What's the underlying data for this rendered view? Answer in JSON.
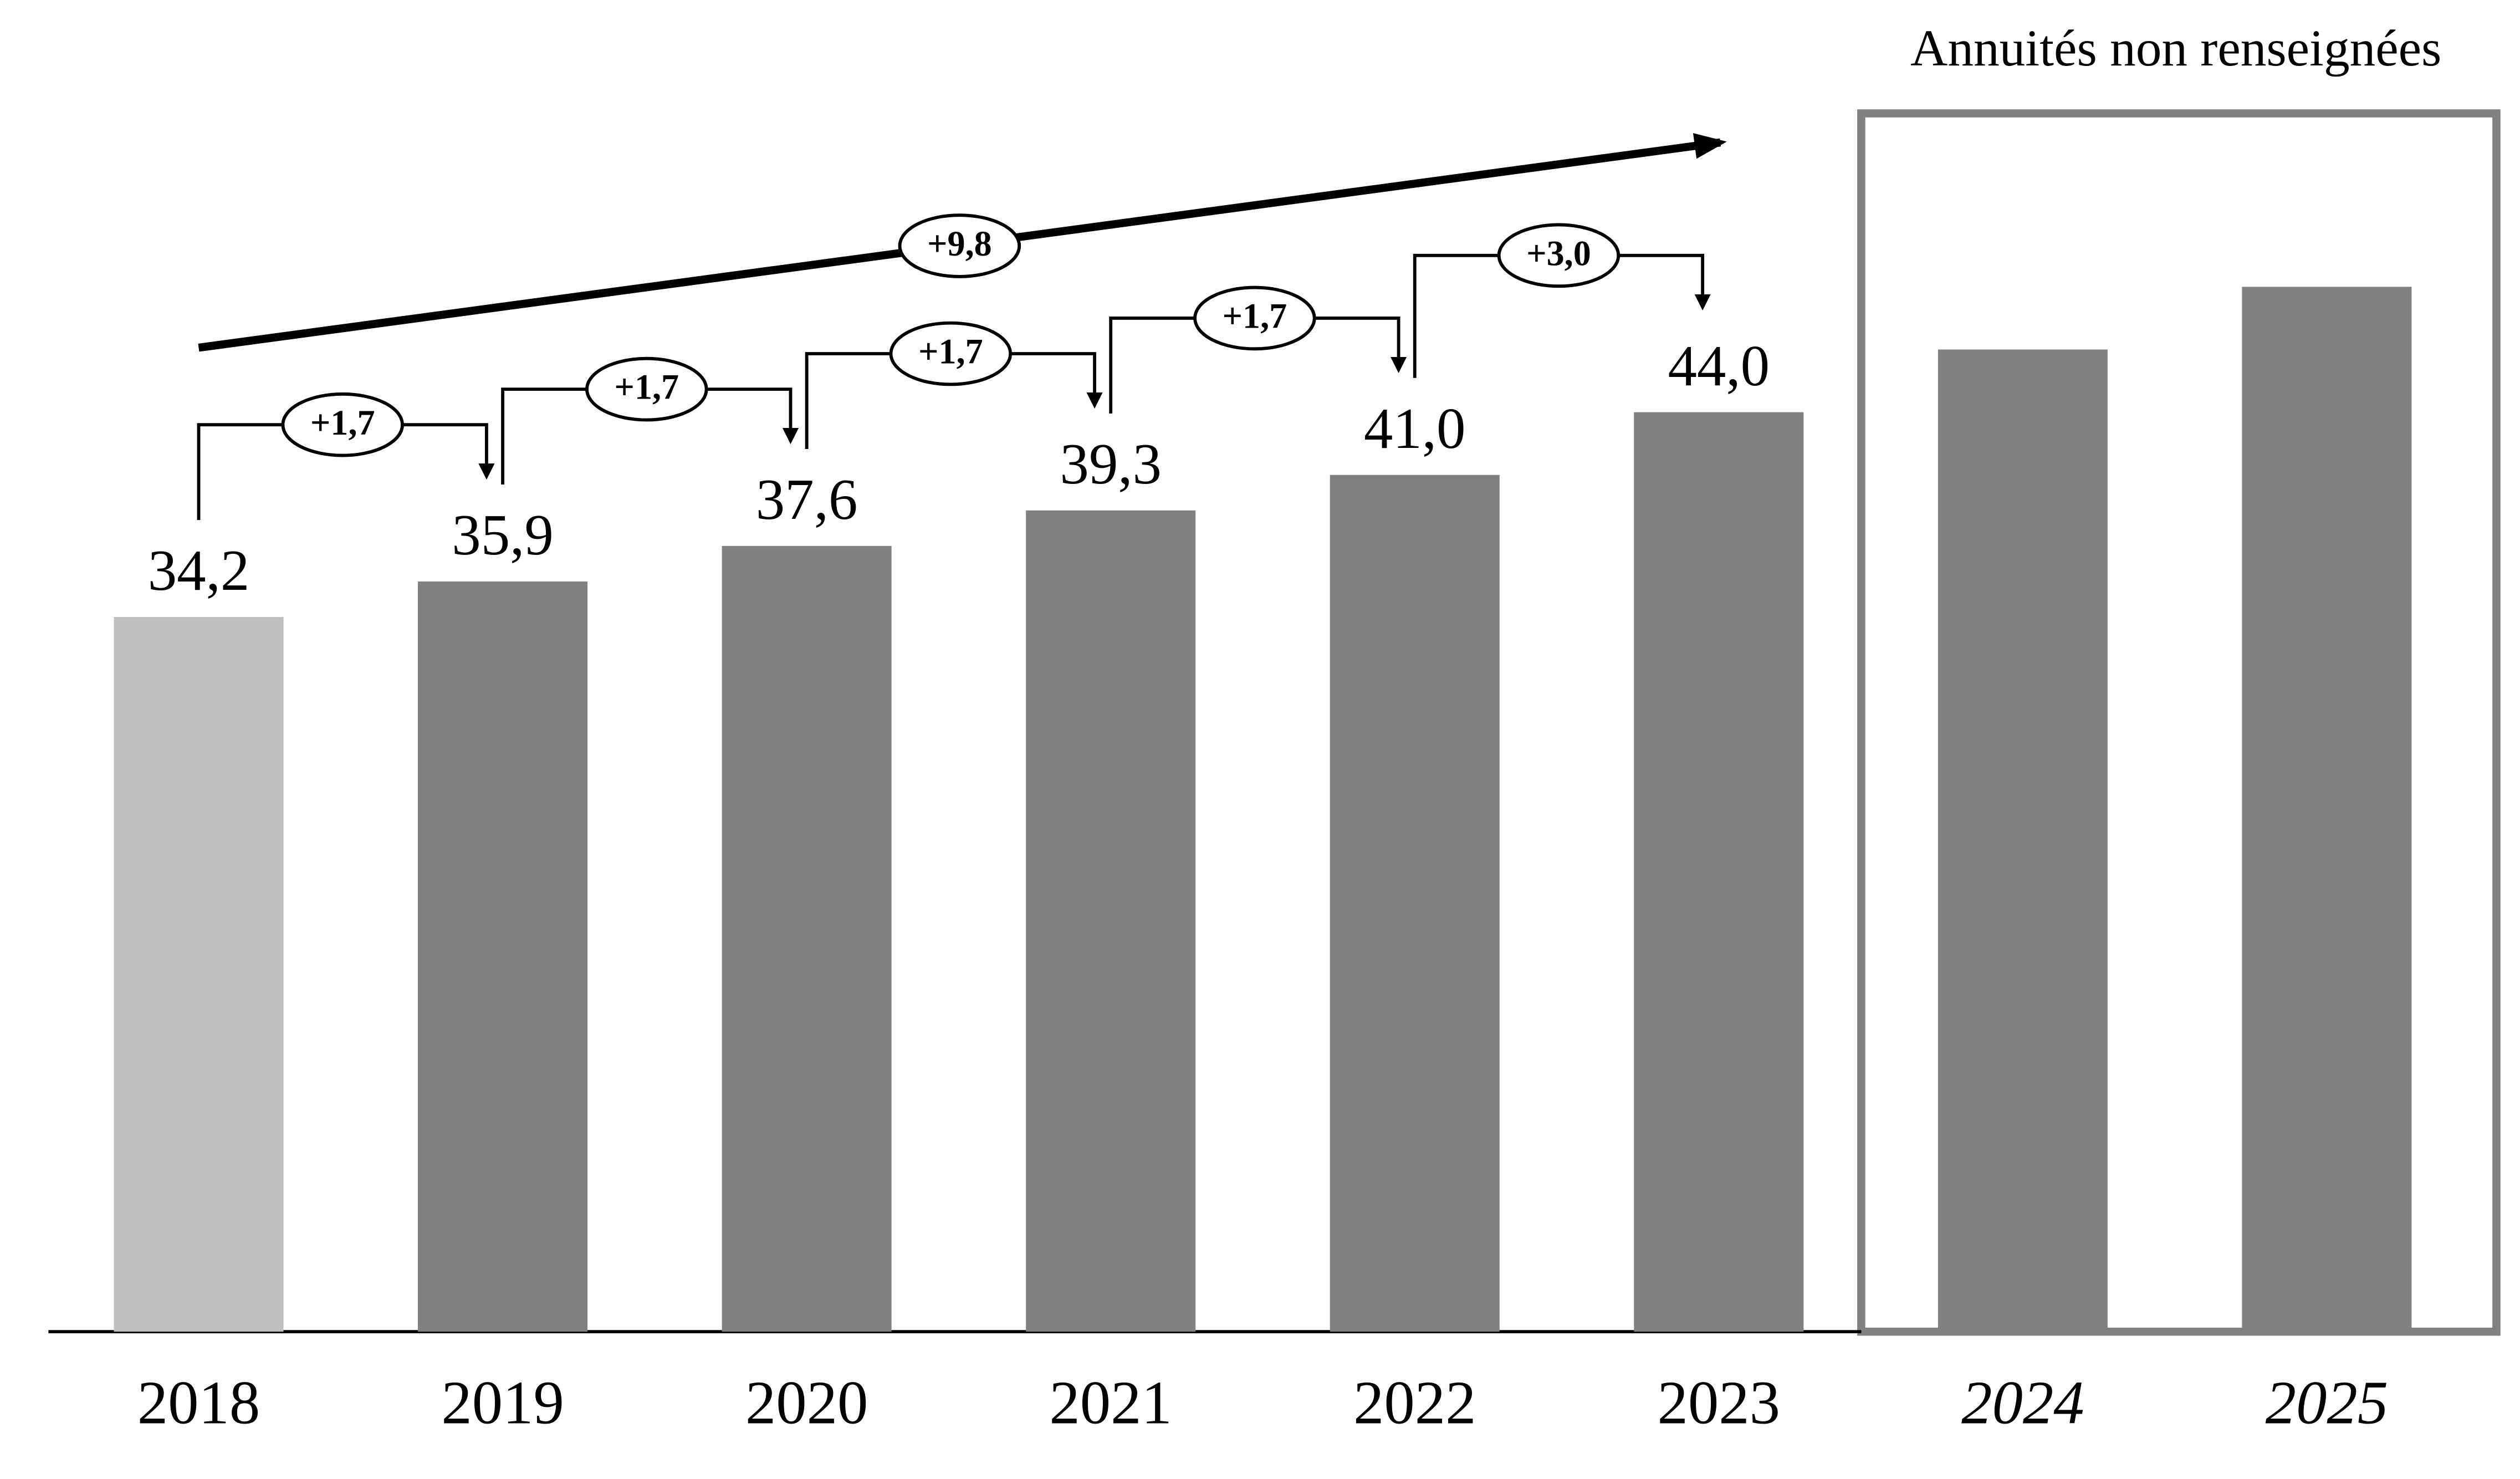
{
  "chart_data": {
    "type": "bar",
    "categories": [
      "2018",
      "2019",
      "2020",
      "2021",
      "2022",
      "2023",
      "2024",
      "2025"
    ],
    "values": [
      34.2,
      35.9,
      37.6,
      39.3,
      41.0,
      44.0,
      47.0,
      50.0
    ],
    "value_labels": [
      "34,2",
      "35,9",
      "37,6",
      "39,3",
      "41,0",
      "44,0",
      null,
      null
    ],
    "colors": [
      "#bfbfbf",
      "#808080",
      "#808080",
      "#808080",
      "#808080",
      "#808080",
      "#808080",
      "#808080"
    ],
    "ylim": [
      0,
      60
    ],
    "step_annotations": [
      "+1,7",
      "+1,7",
      "+1,7",
      "+1,7",
      "+3,0"
    ],
    "total_annotation": "+9,8",
    "box_label": "Annuités non renseignées"
  }
}
